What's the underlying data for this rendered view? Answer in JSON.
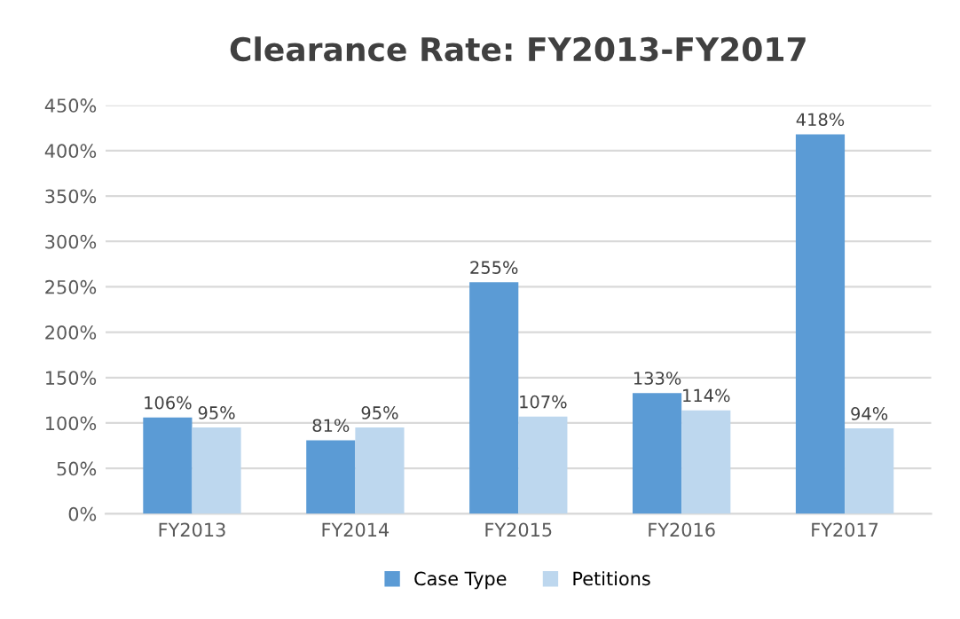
{
  "chart_data": {
    "type": "bar",
    "title": "Clearance Rate: FY2013-FY2017",
    "categories": [
      "FY2013",
      "FY2014",
      "FY2015",
      "FY2016",
      "FY2017"
    ],
    "series": [
      {
        "name": "Case Type",
        "color": "#5b9bd5",
        "values": [
          106,
          81,
          255,
          133,
          418
        ],
        "value_labels": [
          "106%",
          "81%",
          "255%",
          "133%",
          "418%"
        ]
      },
      {
        "name": "Petitions",
        "color": "#bdd7ee",
        "values": [
          95,
          95,
          107,
          114,
          94
        ],
        "value_labels": [
          "95%",
          "95%",
          "107%",
          "114%",
          "94%"
        ]
      }
    ],
    "ylim": [
      0,
      450
    ],
    "yticks": [
      {
        "value": 0,
        "label": "0%"
      },
      {
        "value": 50,
        "label": "50%"
      },
      {
        "value": 100,
        "label": "100%"
      },
      {
        "value": 150,
        "label": "150%"
      },
      {
        "value": 200,
        "label": "200%"
      },
      {
        "value": 250,
        "label": "250%"
      },
      {
        "value": 300,
        "label": "300%"
      },
      {
        "value": 350,
        "label": "350%"
      },
      {
        "value": 400,
        "label": "400%"
      },
      {
        "value": 450,
        "label": "450%"
      }
    ],
    "grid": "y",
    "legend": "bottom"
  }
}
